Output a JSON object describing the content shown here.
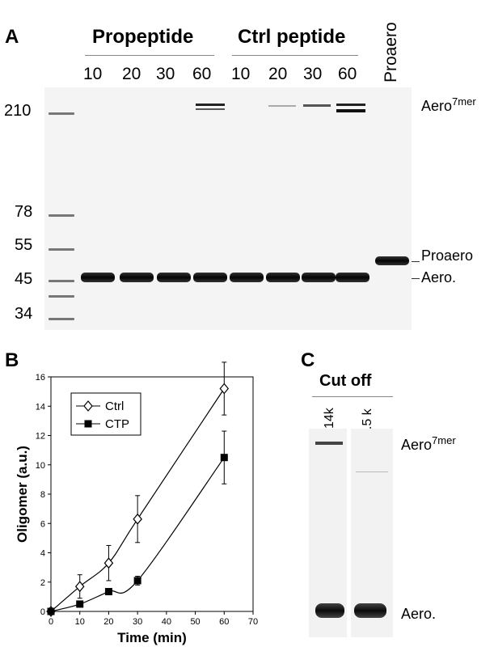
{
  "panelA": {
    "letter": "A",
    "group_left": "Propeptide",
    "group_right": "Ctrl peptide",
    "lanes_left": [
      "10",
      "20",
      "30",
      "60"
    ],
    "lanes_right": [
      "10",
      "20",
      "30",
      "60"
    ],
    "proaero_lane": "Proaero",
    "mw_markers": [
      "210",
      "78",
      "55",
      "45",
      "34"
    ],
    "band_labels": {
      "aero7_base": "Aero",
      "aero7_sup": "7mer",
      "proaero": "Proaero",
      "aero": "Aero."
    }
  },
  "panelB": {
    "letter": "B",
    "chart_data": {
      "type": "scatter",
      "xlabel": "Time (min)",
      "ylabel": "Oligomer (a.u.)",
      "xlim": [
        0,
        70
      ],
      "ylim": [
        0,
        16
      ],
      "xticks": [
        0,
        10,
        20,
        30,
        40,
        50,
        60,
        70
      ],
      "yticks": [
        0,
        2,
        4,
        6,
        8,
        10,
        12,
        14,
        16
      ],
      "grid": false,
      "legend_position": "top-left",
      "series": [
        {
          "name": "Ctrl",
          "marker": "open-diamond",
          "x": [
            0,
            10,
            20,
            30,
            60
          ],
          "y": [
            0,
            1.7,
            3.3,
            6.3,
            15.2
          ],
          "error": [
            0,
            0.8,
            1.2,
            1.6,
            1.8
          ]
        },
        {
          "name": "CTP",
          "marker": "filled-square",
          "x": [
            0,
            10,
            20,
            30,
            60
          ],
          "y": [
            0,
            0.5,
            1.35,
            2.1,
            10.5
          ],
          "error": [
            0,
            0.2,
            0.15,
            0.3,
            1.8
          ]
        }
      ]
    }
  },
  "panelC": {
    "letter": "C",
    "title": "Cut off",
    "lanes": [
      "14k",
      "3.5 k"
    ],
    "band_labels": {
      "aero7_base": "Aero",
      "aero7_sup": "7mer",
      "aero": "Aero."
    }
  }
}
